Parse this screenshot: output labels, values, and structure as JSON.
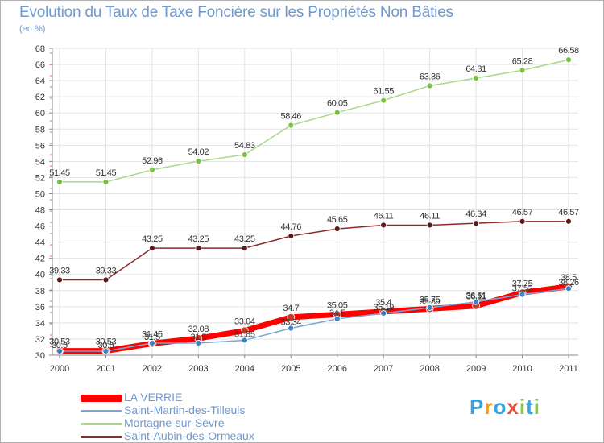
{
  "header": {
    "title": "Evolution du Taux de Taxe Foncière sur les Propriétés Non Bâties",
    "unit": "(en %)"
  },
  "logo": {
    "letters": [
      "P",
      "r",
      "o",
      "x",
      "i",
      "t",
      "i"
    ],
    "colors": [
      "#3aa3e0",
      "#f39c1f",
      "#3aa3e0",
      "#e84c3d",
      "#8cc63f",
      "#3aa3e0",
      "#8cc63f"
    ]
  },
  "chart_data": {
    "type": "line",
    "x": [
      "2000",
      "2001",
      "2002",
      "2003",
      "2004",
      "2005",
      "2006",
      "2007",
      "2008",
      "2009",
      "2010",
      "2011"
    ],
    "ylim": [
      30,
      68
    ],
    "yticks": [
      30,
      32,
      34,
      36,
      38,
      40,
      42,
      44,
      46,
      48,
      50,
      52,
      54,
      56,
      58,
      60,
      62,
      64,
      66,
      68
    ],
    "grid": true,
    "legend_position": "bottom-left",
    "series": [
      {
        "name": "LA VERRIE",
        "color": "#ff0000",
        "point_color": "#c0392b",
        "width": 7,
        "values": [
          30.53,
          30.53,
          31.45,
          32.08,
          33.04,
          34.7,
          35.05,
          35.4,
          35.75,
          36.11,
          37.75,
          38.5
        ],
        "labels": [
          "30.53",
          "30.53",
          "31.45",
          "32.08",
          "33.04",
          "34.7",
          "35.05",
          "35.4",
          "35.75",
          "36.11",
          "37.75",
          "38.5"
        ]
      },
      {
        "name": "Saint-Martin-des-Tilleuls",
        "color": "#7aa6d6",
        "point_color": "#3c82c4",
        "width": 1.5,
        "values": [
          30.5,
          30.5,
          31.5,
          31.5,
          31.85,
          33.34,
          34.5,
          35.19,
          35.89,
          36.61,
          37.52,
          38.26
        ],
        "labels": [
          "30.5",
          "30.5",
          "31.5",
          "31.5",
          "31.85",
          "33.34",
          "34.5",
          "35.19",
          "35.89",
          "36.61",
          "37.52",
          "38.26"
        ]
      },
      {
        "name": "Mortagne-sur-Sèvre",
        "color": "#a8d88a",
        "point_color": "#7ac142",
        "width": 1.5,
        "values": [
          51.45,
          51.45,
          52.96,
          54.02,
          54.83,
          58.46,
          60.05,
          61.55,
          63.36,
          64.31,
          65.28,
          66.58
        ],
        "labels": [
          "51.45",
          "51.45",
          "52.96",
          "54.02",
          "54.83",
          "58.46",
          "60.05",
          "61.55",
          "63.36",
          "64.31",
          "65.28",
          "66.58"
        ]
      },
      {
        "name": "Saint-Aubin-des-Ormeaux",
        "color": "#8b2a2a",
        "point_color": "#5a1a1a",
        "width": 1.5,
        "values": [
          39.33,
          39.33,
          43.25,
          43.25,
          43.25,
          44.76,
          45.65,
          46.11,
          46.11,
          46.34,
          46.57,
          46.57
        ],
        "labels": [
          "39.33",
          "39.33",
          "43.25",
          "43.25",
          "43.25",
          "44.76",
          "45.65",
          "46.11",
          "46.11",
          "46.34",
          "46.57",
          "46.57"
        ]
      }
    ]
  }
}
